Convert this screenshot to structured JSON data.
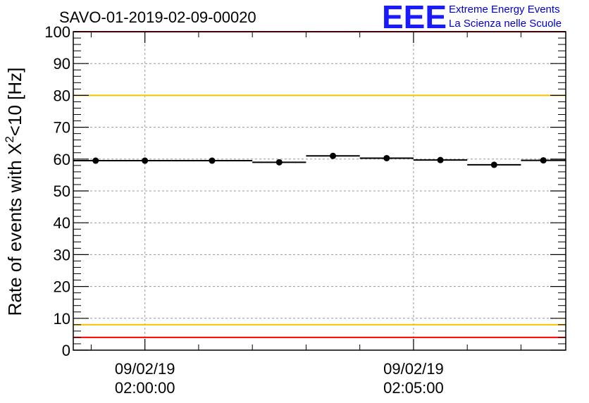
{
  "chart_data": {
    "type": "scatter",
    "title": "SAVO-01-2019-02-09-00020",
    "ylabel": {
      "prefix": "Rate of events with X",
      "sup": "2",
      "suffix": "<10 [Hz]"
    },
    "xlabel": "",
    "ylim": [
      0,
      100
    ],
    "yticks": [
      "0",
      "10",
      "20",
      "30",
      "40",
      "50",
      "60",
      "70",
      "80",
      "90",
      "100"
    ],
    "xlim": [
      "2019-02-09 01:58:40",
      "2019-02-09 02:07:50"
    ],
    "xticks": [
      {
        "time": "2019-02-09 02:00:00",
        "date": "09/02/19",
        "clock": "02:00:00"
      },
      {
        "time": "2019-02-09 02:05:00",
        "date": "09/02/19",
        "clock": "02:05:00"
      }
    ],
    "grid": true,
    "reference_lines": [
      {
        "y": 100,
        "color": "#ff0000"
      },
      {
        "y": 80,
        "color": "#f5c400"
      },
      {
        "y": 8,
        "color": "#f5c400"
      },
      {
        "y": 4,
        "color": "#ff0000"
      }
    ],
    "points": [
      {
        "x_start": "01:58:40",
        "x_end": "01:59:30",
        "y": 59.5
      },
      {
        "x_start": "01:59:30",
        "x_end": "02:00:30",
        "y": 59.5
      },
      {
        "x_start": "02:00:30",
        "x_end": "02:02:00",
        "y": 59.5
      },
      {
        "x_start": "02:02:00",
        "x_end": "02:03:00",
        "y": 59.0
      },
      {
        "x_start": "02:03:00",
        "x_end": "02:04:00",
        "y": 61.0
      },
      {
        "x_start": "02:04:00",
        "x_end": "02:05:00",
        "y": 60.3
      },
      {
        "x_start": "02:05:00",
        "x_end": "02:06:00",
        "y": 59.7
      },
      {
        "x_start": "02:06:00",
        "x_end": "02:07:00",
        "y": 58.2
      },
      {
        "x_start": "02:07:00",
        "x_end": "02:07:50",
        "y": 59.6
      }
    ],
    "colors": {
      "points": "#000000",
      "grid": "#9a9a9a"
    }
  },
  "logo": {
    "letters": "EEE",
    "line1": "Extreme Energy Events",
    "line2": "La Scienza nelle Scuole",
    "color": "#1a1aff"
  }
}
